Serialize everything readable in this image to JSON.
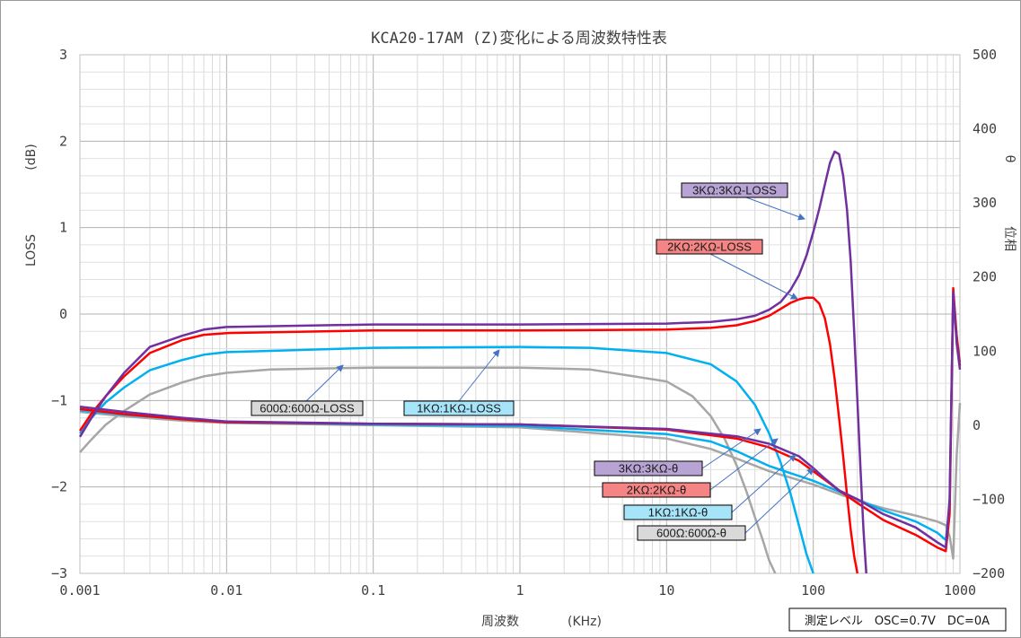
{
  "chart_data": {
    "type": "line",
    "title": "KCA20-17AM (Z)変化による周波数特性表",
    "x_axis": {
      "label": "周波数",
      "unit": "(KHz)",
      "scale": "log",
      "range": [
        0.001,
        1000
      ],
      "tick_labels": [
        "0.001",
        "0.01",
        "0.1",
        "1",
        "10",
        "100",
        "1000"
      ]
    },
    "y_axis_left": {
      "label": "LOSS",
      "unit": "(dB)",
      "range": [
        -3,
        3
      ],
      "tick_labels": [
        "−3",
        "−2",
        "−1",
        "0",
        "1",
        "2",
        "3"
      ]
    },
    "y_axis_right": {
      "label": "位相",
      "symbol": "θ",
      "range": [
        -200,
        500
      ],
      "tick_labels": [
        "−200",
        "−100",
        "0",
        "100",
        "200",
        "300",
        "400",
        "500"
      ]
    },
    "grid": true,
    "series": [
      {
        "name": "3KΩ:3KΩ-LOSS",
        "axis": "left",
        "color": "#7030a0",
        "x": [
          0.001,
          0.0012,
          0.0015,
          0.002,
          0.003,
          0.005,
          0.007,
          0.01,
          0.1,
          1,
          10,
          20,
          30,
          40,
          50,
          60,
          70,
          80,
          90,
          100,
          110,
          120,
          130,
          140,
          150,
          160,
          170,
          180,
          190,
          200,
          210,
          220,
          230
        ],
        "y": [
          -1.42,
          -1.2,
          -0.95,
          -0.68,
          -0.38,
          -0.25,
          -0.18,
          -0.15,
          -0.12,
          -0.12,
          -0.11,
          -0.09,
          -0.06,
          -0.02,
          0.05,
          0.14,
          0.28,
          0.45,
          0.68,
          0.95,
          1.22,
          1.5,
          1.75,
          1.88,
          1.85,
          1.6,
          1.2,
          0.6,
          -0.2,
          -1.0,
          -1.8,
          -2.5,
          -3.0
        ]
      },
      {
        "name": "2KΩ:2KΩ-LOSS",
        "axis": "left",
        "color": "#ff0000",
        "x": [
          0.001,
          0.0012,
          0.0015,
          0.002,
          0.003,
          0.005,
          0.007,
          0.01,
          0.1,
          1,
          10,
          20,
          30,
          40,
          50,
          60,
          70,
          80,
          90,
          100,
          110,
          120,
          130,
          140,
          150,
          160,
          170,
          180,
          190,
          200
        ],
        "y": [
          -1.35,
          -1.15,
          -0.95,
          -0.72,
          -0.45,
          -0.3,
          -0.24,
          -0.22,
          -0.19,
          -0.19,
          -0.18,
          -0.16,
          -0.13,
          -0.08,
          -0.02,
          0.06,
          0.13,
          0.17,
          0.19,
          0.19,
          0.12,
          -0.05,
          -0.35,
          -0.75,
          -1.2,
          -1.65,
          -2.1,
          -2.5,
          -2.8,
          -3.0
        ]
      },
      {
        "name": "1KΩ:1KΩ-LOSS",
        "axis": "left",
        "color": "#00b0f0",
        "x": [
          0.001,
          0.0012,
          0.0015,
          0.002,
          0.003,
          0.005,
          0.007,
          0.01,
          0.1,
          1,
          3,
          10,
          20,
          30,
          40,
          50,
          60,
          70,
          80,
          90,
          100
        ],
        "y": [
          -1.38,
          -1.2,
          -1.02,
          -0.85,
          -0.65,
          -0.53,
          -0.47,
          -0.44,
          -0.39,
          -0.38,
          -0.39,
          -0.45,
          -0.58,
          -0.78,
          -1.05,
          -1.38,
          -1.72,
          -2.08,
          -2.45,
          -2.78,
          -3.0
        ]
      },
      {
        "name": "600Ω:600Ω-LOSS",
        "axis": "left",
        "color": "#a6a6a6",
        "x": [
          0.001,
          0.0012,
          0.0015,
          0.002,
          0.003,
          0.005,
          0.007,
          0.01,
          0.02,
          0.1,
          1,
          3,
          10,
          15,
          20,
          25,
          30,
          35,
          40,
          45,
          50,
          55
        ],
        "y": [
          -1.6,
          -1.45,
          -1.28,
          -1.12,
          -0.93,
          -0.79,
          -0.72,
          -0.68,
          -0.64,
          -0.62,
          -0.62,
          -0.64,
          -0.78,
          -0.95,
          -1.18,
          -1.45,
          -1.75,
          -2.05,
          -2.35,
          -2.6,
          -2.85,
          -3.0
        ]
      },
      {
        "name": "3KΩ:3KΩ-θ",
        "axis": "right",
        "color": "#7030a0",
        "x": [
          0.001,
          0.002,
          0.005,
          0.01,
          0.1,
          1,
          10,
          30,
          50,
          80,
          100,
          120,
          150,
          200,
          300,
          500,
          700,
          800,
          850,
          900,
          950,
          1000
        ],
        "y": [
          25,
          18,
          10,
          5,
          2,
          1,
          -5,
          -15,
          -25,
          -42,
          -58,
          -72,
          -88,
          -100,
          -120,
          -138,
          -158,
          -165,
          -100,
          180,
          110,
          75
        ]
      },
      {
        "name": "2KΩ:2KΩ-θ",
        "axis": "right",
        "color": "#ff0000",
        "x": [
          0.001,
          0.002,
          0.005,
          0.01,
          0.1,
          1,
          10,
          30,
          50,
          80,
          100,
          150,
          200,
          300,
          500,
          700,
          800,
          850,
          900,
          950,
          1000
        ],
        "y": [
          22,
          15,
          8,
          4,
          2,
          1,
          -6,
          -18,
          -30,
          -48,
          -62,
          -88,
          -105,
          -128,
          -148,
          -165,
          -170,
          -120,
          185,
          120,
          80
        ]
      },
      {
        "name": "1KΩ:1KΩ-θ",
        "axis": "right",
        "color": "#00b0f0",
        "x": [
          0.001,
          0.002,
          0.005,
          0.01,
          0.1,
          1,
          10,
          20,
          30,
          50,
          100,
          200,
          300,
          500,
          700,
          800,
          850,
          900,
          950,
          1000
        ],
        "y": [
          20,
          14,
          8,
          4,
          1,
          -1,
          -12,
          -22,
          -35,
          -55,
          -75,
          -100,
          -115,
          -130,
          -145,
          -155,
          -110,
          175,
          120,
          85
        ]
      },
      {
        "name": "600Ω:600Ω-θ",
        "axis": "right",
        "color": "#a6a6a6",
        "x": [
          0.001,
          0.002,
          0.005,
          0.01,
          0.1,
          1,
          10,
          20,
          30,
          50,
          100,
          200,
          300,
          500,
          700,
          800,
          850,
          900,
          950,
          1000
        ],
        "y": [
          18,
          12,
          6,
          3,
          0,
          -3,
          -18,
          -32,
          -45,
          -62,
          -80,
          -102,
          -112,
          -122,
          -130,
          -135,
          -150,
          -180,
          -40,
          30
        ]
      }
    ],
    "annotations": [
      {
        "text": "3KΩ:3KΩ-LOSS",
        "fill": "#b7a4d4",
        "series": 0
      },
      {
        "text": "2KΩ:2KΩ-LOSS",
        "fill": "#f58585",
        "series": 1
      },
      {
        "text": "1KΩ:1KΩ-LOSS",
        "fill": "#a6e4fa",
        "series": 2
      },
      {
        "text": "600Ω:600Ω-LOSS",
        "fill": "#d9d9d9",
        "series": 3
      },
      {
        "text": "3KΩ:3KΩ-θ",
        "fill": "#b7a4d4",
        "series": 4
      },
      {
        "text": "2KΩ:2KΩ-θ",
        "fill": "#f58585",
        "series": 5
      },
      {
        "text": "1KΩ:1KΩ-θ",
        "fill": "#a6e4fa",
        "series": 6
      },
      {
        "text": "600Ω:600Ω-θ",
        "fill": "#d9d9d9",
        "series": 7
      }
    ],
    "note": "測定レベル　OSC=0.7V　DC=0A"
  }
}
